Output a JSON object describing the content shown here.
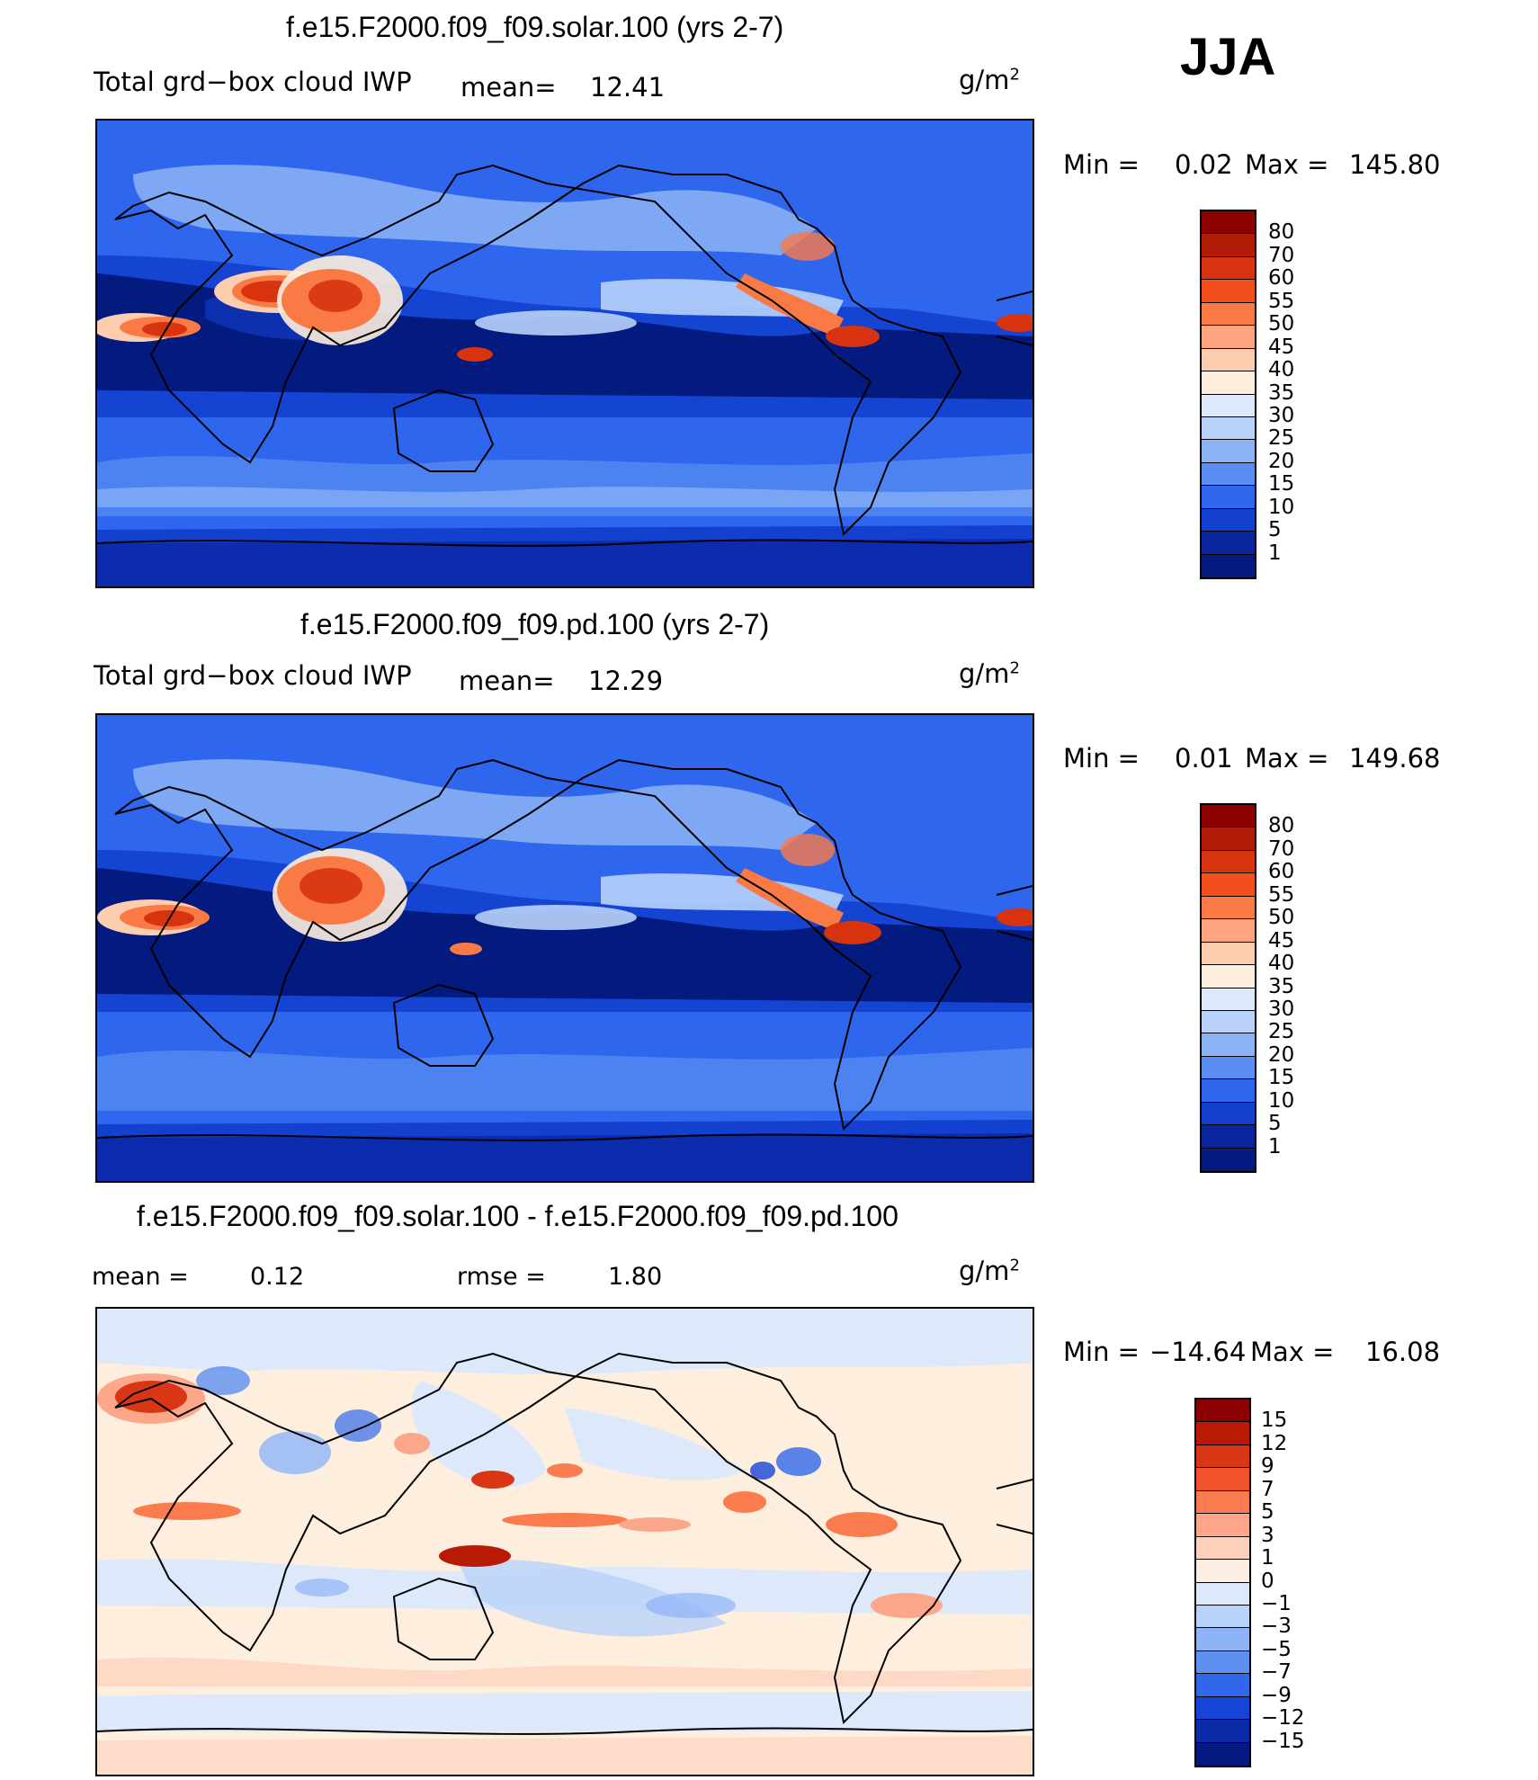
{
  "season": "JJA",
  "unit_base": "g/m",
  "unit_exp": "2",
  "panels": [
    {
      "title": "f.e15.F2000.f09_f09.solar.100 (yrs 2-7)",
      "left_label": "Total grd−box cloud IWP",
      "mean_label": "mean=",
      "mean_value": "12.41",
      "min_label": "Min  =",
      "min_value": "0.02",
      "max_label": "Max  =",
      "max_value": "145.80",
      "colorbar_labels": [
        "80",
        "70",
        "60",
        "55",
        "50",
        "45",
        "40",
        "35",
        "30",
        "25",
        "20",
        "15",
        "10",
        "5",
        "1"
      ]
    },
    {
      "title": "f.e15.F2000.f09_f09.pd.100 (yrs 2-7)",
      "left_label": "Total grd−box cloud IWP",
      "mean_label": "mean=",
      "mean_value": "12.29",
      "min_label": "Min  =",
      "min_value": "0.01",
      "max_label": "Max  =",
      "max_value": "149.68",
      "colorbar_labels": [
        "80",
        "70",
        "60",
        "55",
        "50",
        "45",
        "40",
        "35",
        "30",
        "25",
        "20",
        "15",
        "10",
        "5",
        "1"
      ]
    },
    {
      "title": "f.e15.F2000.f09_f09.solar.100 - f.e15.F2000.f09_f09.pd.100",
      "mean_label": "mean  =",
      "mean_value": "0.12",
      "rmse_label": "rmse  =",
      "rmse_value": "1.80",
      "min_label": "Min  =",
      "min_value": "−14.64",
      "max_label": "Max  =",
      "max_value": "16.08",
      "colorbar_labels": [
        "15",
        "12",
        "9",
        "7",
        "5",
        "3",
        "1",
        "0",
        "−1",
        "−3",
        "−5",
        "−7",
        "−9",
        "−12",
        "−15"
      ]
    }
  ],
  "colors": {
    "abs_scale": [
      "#8b0000",
      "#b01c08",
      "#d6330e",
      "#f34f1d",
      "#fa7a46",
      "#fca57e",
      "#fdcdb0",
      "#fdeede",
      "#dbe9fa",
      "#b8d2fa",
      "#8cb3f5",
      "#5a8ef2",
      "#2f66ee",
      "#1340cf",
      "#0a249e",
      "#031a7e"
    ],
    "diff_scale": [
      "#8b0000",
      "#b81a06",
      "#d93616",
      "#f2532a",
      "#fb7c4f",
      "#fca68a",
      "#fdd0bb",
      "#fdeee3",
      "#dde9fb",
      "#b9d2fa",
      "#8fb4f6",
      "#5e90f0",
      "#3168eb",
      "#1544d6",
      "#0a2aa6",
      "#041a80"
    ],
    "land_outline": "#000000"
  }
}
